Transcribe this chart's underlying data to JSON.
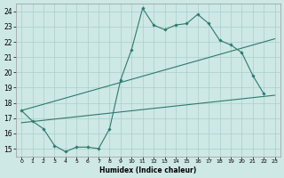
{
  "xlabel": "Humidex (Indice chaleur)",
  "background_color": "#cde8e5",
  "grid_color": "#aacfcc",
  "line_color": "#2d7a6e",
  "xlim": [
    -0.5,
    23.5
  ],
  "ylim": [
    14.5,
    24.5
  ],
  "xticks": [
    0,
    1,
    2,
    3,
    4,
    5,
    6,
    7,
    8,
    9,
    10,
    11,
    12,
    13,
    14,
    15,
    16,
    17,
    18,
    19,
    20,
    21,
    22,
    23
  ],
  "yticks": [
    15,
    16,
    17,
    18,
    19,
    20,
    21,
    22,
    23,
    24
  ],
  "line1_x": [
    0,
    1,
    2,
    3,
    4,
    5,
    6,
    7,
    8,
    9,
    10,
    11,
    12,
    13,
    14,
    15,
    16,
    17,
    18,
    19,
    20,
    21,
    22
  ],
  "line1_y": [
    17.5,
    16.8,
    16.3,
    15.2,
    14.8,
    15.1,
    15.1,
    15.0,
    16.3,
    19.5,
    21.5,
    24.2,
    23.1,
    22.8,
    23.1,
    23.2,
    23.8,
    23.2,
    22.1,
    21.8,
    21.3,
    19.8,
    18.6
  ],
  "line2_x": [
    0,
    23
  ],
  "line2_y": [
    17.5,
    22.2
  ],
  "line3_x": [
    0,
    23
  ],
  "line3_y": [
    16.7,
    18.5
  ],
  "marker_symbol": "D",
  "marker_size": 1.8,
  "line_width": 0.8
}
